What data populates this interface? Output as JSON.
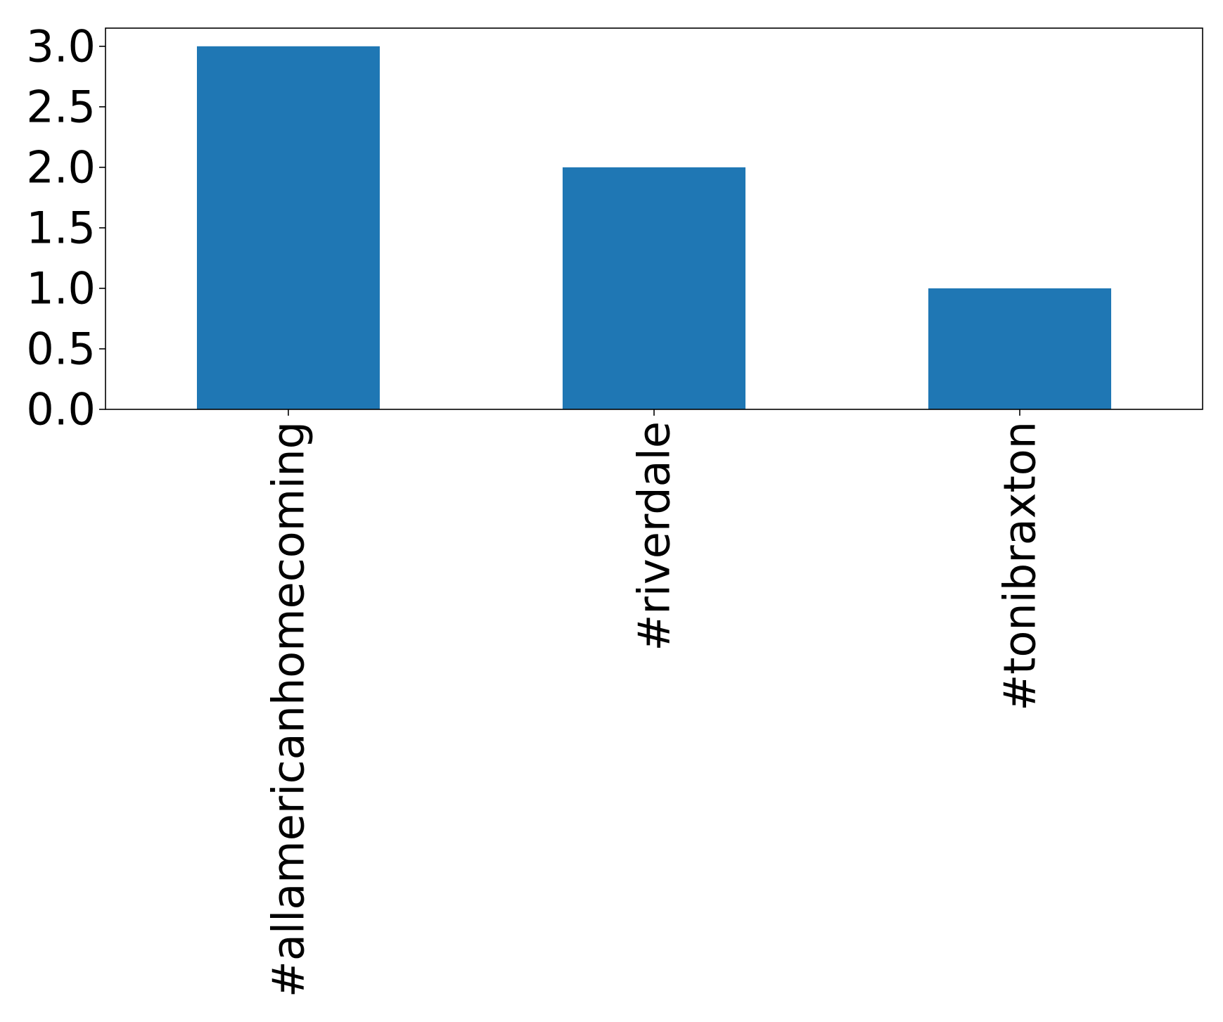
{
  "chart_data": {
    "type": "bar",
    "categories": [
      "#allamericanhomecoming",
      "#riverdale",
      "#tonibraxton"
    ],
    "values": [
      3,
      2,
      1
    ],
    "title": "",
    "xlabel": "",
    "ylabel": "",
    "ylim": [
      0,
      3.15
    ],
    "yticks": [
      "0.0",
      "0.5",
      "1.0",
      "1.5",
      "2.0",
      "2.5",
      "3.0"
    ],
    "grid": false,
    "bar_color": "#1f77b4"
  }
}
